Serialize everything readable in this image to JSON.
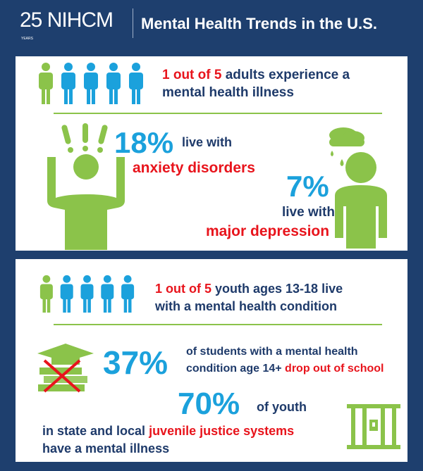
{
  "header": {
    "logo_number": "25",
    "logo_years": "YEARS",
    "logo_text": "NIHCM",
    "title": "Mental Health Trends in the U.S."
  },
  "colors": {
    "background": "#1e3f6e",
    "green": "#8bc34a",
    "blue": "#1ba1dc",
    "red": "#e8141c",
    "navy": "#1e3a6a"
  },
  "adults": {
    "ratio": "1 out of 5",
    "line1": "adults experience a",
    "line2": "mental health illness",
    "anxiety_pct": "18%",
    "anxiety_pre": "live with",
    "anxiety_label": "anxiety disorders",
    "depression_pct": "7%",
    "depression_pre": "live with",
    "depression_label": "major depression"
  },
  "youth": {
    "ratio": "1 out of 5",
    "line1": "youth ages 13-18 live",
    "line2": "with a mental health condition",
    "dropout_pct": "37%",
    "dropout_line1": "of students with a mental health",
    "dropout_line2": "condition age 14+",
    "dropout_label": "drop out of school",
    "justice_pct": "70%",
    "justice_post": "of youth",
    "justice_line1": "in state and local",
    "justice_label": "juvenile justice systems",
    "justice_line2": "have a mental illness"
  }
}
